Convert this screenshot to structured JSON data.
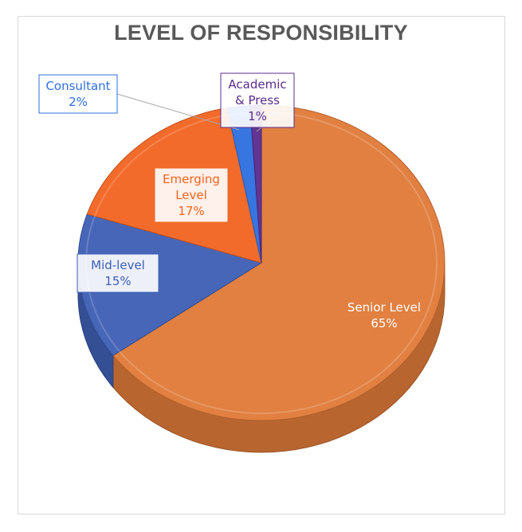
{
  "chart_data": {
    "type": "pie",
    "title": "LEVEL OF RESPONSIBILITY",
    "slices": [
      {
        "lines": [
          "Senior Level",
          "65%"
        ],
        "value": 65,
        "color": "#e07b39",
        "text_color": "#ffffff"
      },
      {
        "lines": [
          "Mid-level",
          "15%"
        ],
        "value": 15,
        "color": "#3f60b5",
        "text_color": "#3f60b5"
      },
      {
        "lines": [
          "Emerging",
          "Level",
          "17%"
        ],
        "value": 17,
        "color": "#f26522",
        "text_color": "#f26522"
      },
      {
        "lines": [
          "Consultant",
          "2%"
        ],
        "value": 2,
        "color": "#2f6fe0",
        "text_color": "#2f6fe0"
      },
      {
        "lines": [
          "Academic",
          "& Press",
          "1%"
        ],
        "value": 1,
        "color": "#5b2d8e",
        "text_color": "#5b2d8e"
      }
    ],
    "legend": "none"
  }
}
